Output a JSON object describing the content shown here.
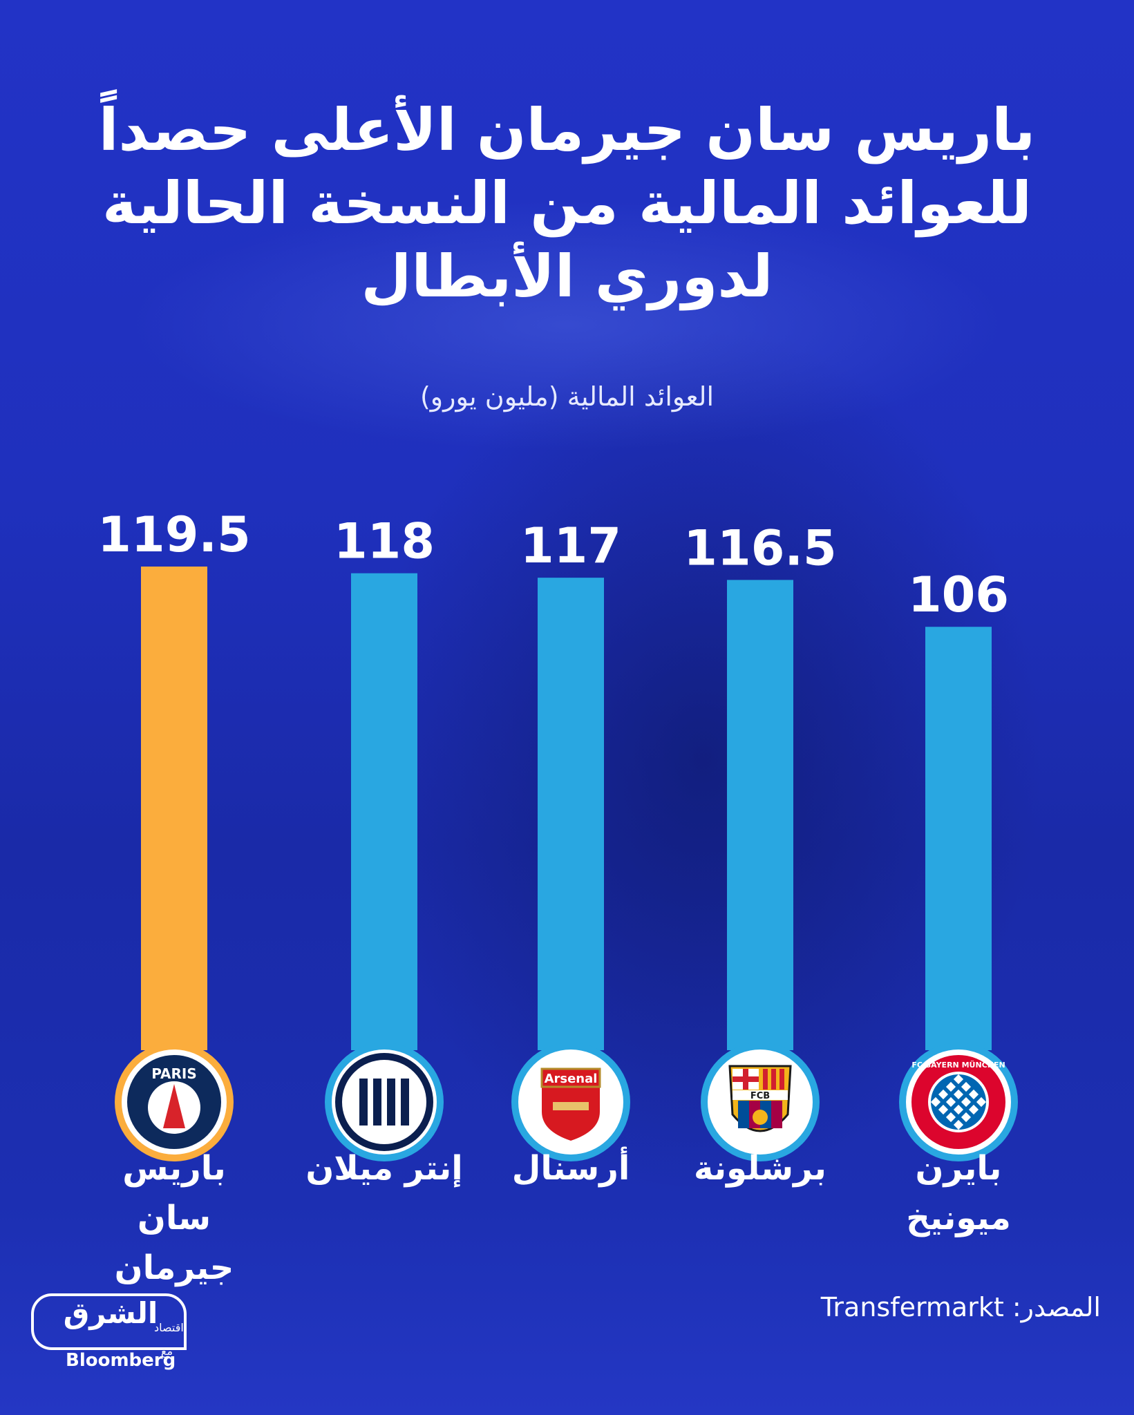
{
  "title_lines": [
    "باريس سان جيرمان الأعلى حصداً",
    "للعوائد المالية من النسخة الحالية",
    "لدوري الأبطال"
  ],
  "subtitle": "العوائد المالية (مليون يورو)",
  "source": "المصدر: Transfermarkt",
  "brand": {
    "name": "الشرق",
    "sub": "اقتصاد",
    "with": "مع",
    "partner": "Bloomberg"
  },
  "colors": {
    "highlight_bar": "#fbad3d",
    "bar": "#29a7e1",
    "background": "#1f30bd"
  },
  "chart_data": {
    "type": "bar",
    "categories": [
      "باريس سان جيرمان",
      "إنتر ميلان",
      "أرسنال",
      "برشلونة",
      "بايرن ميونيخ"
    ],
    "values": [
      119.5,
      118,
      117,
      116.5,
      106
    ],
    "value_labels": [
      "119.5",
      "118",
      "117",
      "116.5",
      "106"
    ],
    "highlight_index": 0,
    "unit": "مليون يورو",
    "logos": [
      {
        "name": "psg-logo",
        "text": "PARIS"
      },
      {
        "name": "inter-logo",
        "text": ""
      },
      {
        "name": "arsenal-logo",
        "text": "Arsenal"
      },
      {
        "name": "barcelona-logo",
        "text": "FCB"
      },
      {
        "name": "bayern-logo",
        "text": "FC BAYERN MÜNCHEN"
      }
    ],
    "ylim": [
      0,
      119.5
    ],
    "grid": false,
    "legend": "none"
  }
}
